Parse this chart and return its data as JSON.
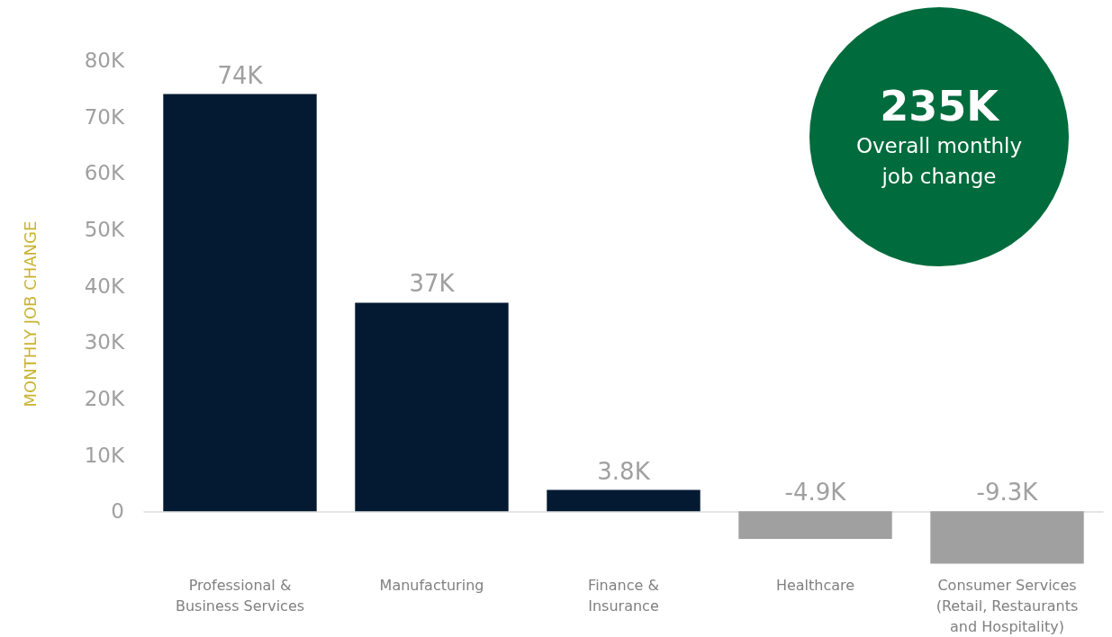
{
  "chart_data": {
    "type": "bar",
    "ylabel": "MONTHLY JOB CHANGE",
    "categories": [
      "Professional &\nBusiness Services",
      "Manufacturing",
      "Finance &\nInsurance",
      "Healthcare",
      "Consumer Services\n(Retail, Restaurants\nand Hospitality)"
    ],
    "values": [
      74000,
      37000,
      3800,
      -4900,
      -9300
    ],
    "colors": [
      "#041a33",
      "#041a33",
      "#041a33",
      "#a0a0a0",
      "#a0a0a0"
    ],
    "value_labels": [
      "74K",
      "37K",
      "3.8K",
      "-4.9K",
      "-9.3K"
    ],
    "ylim": [
      -10000,
      80000
    ],
    "yticks": [
      0,
      {
        "value": 10000,
        "label": "10K"
      },
      {
        "value": 20000,
        "label": "20K"
      },
      {
        "value": 30000,
        "label": "30K"
      },
      {
        "value": 40000,
        "label": "40K"
      },
      {
        "value": 50000,
        "label": "50K"
      },
      {
        "value": 60000,
        "label": "60K"
      },
      {
        "value": 70000,
        "label": "70K"
      },
      {
        "value": 80000,
        "label": "80K"
      }
    ],
    "annotations": [
      "235K",
      "Overall monthly job change"
    ]
  }
}
